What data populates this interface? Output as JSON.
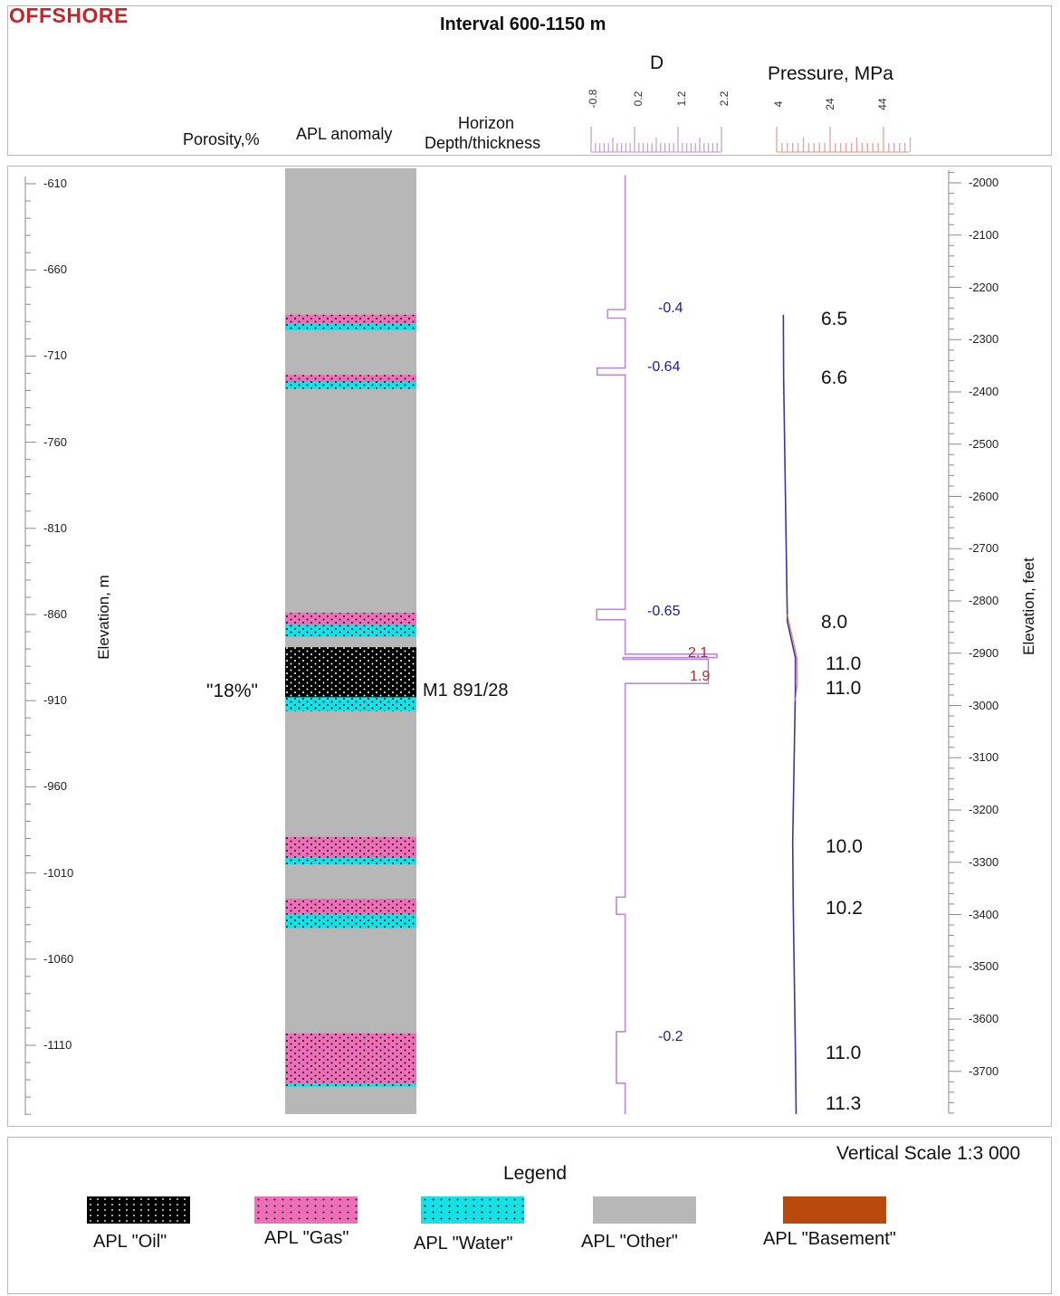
{
  "header": {
    "offshore": "OFFSHORE",
    "title": "Interval 600-1150 m",
    "col_porosity": "Porosity,%",
    "col_apl": "APL anomaly",
    "col_horizon_1": "Horizon",
    "col_horizon_2": "Depth/thickness",
    "d_title": "D",
    "d_ticks": [
      "-0.8",
      "0.2",
      "1.2",
      "2.2"
    ],
    "pressure_title": "Pressure, MPa",
    "pressure_ticks": [
      "4",
      "24",
      "44"
    ]
  },
  "axes": {
    "left_title": "Elevation, m",
    "left_ticks": [
      "-610",
      "-660",
      "-710",
      "-760",
      "-810",
      "-860",
      "-910",
      "-960",
      "-1010",
      "-1060",
      "-1110"
    ],
    "right_title": "Elevation, feet",
    "right_ticks": [
      "-2000",
      "-2100",
      "-2200",
      "-2300",
      "-2400",
      "-2500",
      "-2600",
      "-2700",
      "-2800",
      "-2900",
      "-3000",
      "-3100",
      "-3200",
      "-3300",
      "-3400",
      "-3500",
      "-3600",
      "-3700"
    ]
  },
  "column": {
    "porosity_label": "\"18%\"",
    "horizon_label": "M1 891/28",
    "layers": [
      {
        "type": "gas",
        "top": 686,
        "bottom": 691
      },
      {
        "type": "water",
        "top": 691,
        "bottom": 695
      },
      {
        "type": "gas",
        "top": 721,
        "bottom": 725
      },
      {
        "type": "water",
        "top": 725,
        "bottom": 729
      },
      {
        "type": "gas",
        "top": 859,
        "bottom": 866
      },
      {
        "type": "water",
        "top": 866,
        "bottom": 873
      },
      {
        "type": "oil",
        "top": 879,
        "bottom": 908
      },
      {
        "type": "water",
        "top": 908,
        "bottom": 916
      },
      {
        "type": "gas",
        "top": 989,
        "bottom": 1001
      },
      {
        "type": "water",
        "top": 1001,
        "bottom": 1005
      },
      {
        "type": "gas",
        "top": 1025,
        "bottom": 1034
      },
      {
        "type": "water",
        "top": 1034,
        "bottom": 1042
      },
      {
        "type": "gas",
        "top": 1103,
        "bottom": 1132
      },
      {
        "type": "water",
        "top": 1132,
        "bottom": 1134
      }
    ]
  },
  "d_labels": [
    {
      "text": "-0.4",
      "elev": 684,
      "color": "blue"
    },
    {
      "text": "-0.64",
      "elev": 718,
      "color": "blue"
    },
    {
      "text": "-0.65",
      "elev": 860,
      "color": "blue"
    },
    {
      "text": "2.1",
      "elev": 884,
      "color": "red"
    },
    {
      "text": "1.9",
      "elev": 898,
      "color": "red"
    },
    {
      "text": "-0.2",
      "elev": 1107,
      "color": "blue"
    }
  ],
  "pressure_labels": [
    {
      "text": "6.5",
      "elev": 690
    },
    {
      "text": "6.6",
      "elev": 724
    },
    {
      "text": "8.0",
      "elev": 866
    },
    {
      "text": "11.0",
      "elev": 890
    },
    {
      "text": "11.0",
      "elev": 904
    },
    {
      "text": "10.0",
      "elev": 996
    },
    {
      "text": "10.2",
      "elev": 1032
    },
    {
      "text": "11.0",
      "elev": 1116
    },
    {
      "text": "11.3",
      "elev": 1145
    }
  ],
  "colors": {
    "oil": "#000000",
    "gas": "#ee6fb8",
    "water": "#16e1e6",
    "other": "#b7b7b7",
    "basement": "#b9490d",
    "d_curve": "#b98ad6",
    "pressure_curve": "#3a34a6",
    "pressure_curve_2": "#e08a5c"
  },
  "footer": {
    "scale": "Vertical Scale 1:3 000",
    "legend_title": "Legend",
    "items": [
      {
        "label": "APL \"Oil\"",
        "type": "oil"
      },
      {
        "label": "APL \"Gas\"",
        "type": "gas"
      },
      {
        "label": "APL \"Water\"",
        "type": "water"
      },
      {
        "label": "APL \"Other\"",
        "type": "other"
      },
      {
        "label": "APL \"Basement\"",
        "type": "basement"
      }
    ]
  }
}
